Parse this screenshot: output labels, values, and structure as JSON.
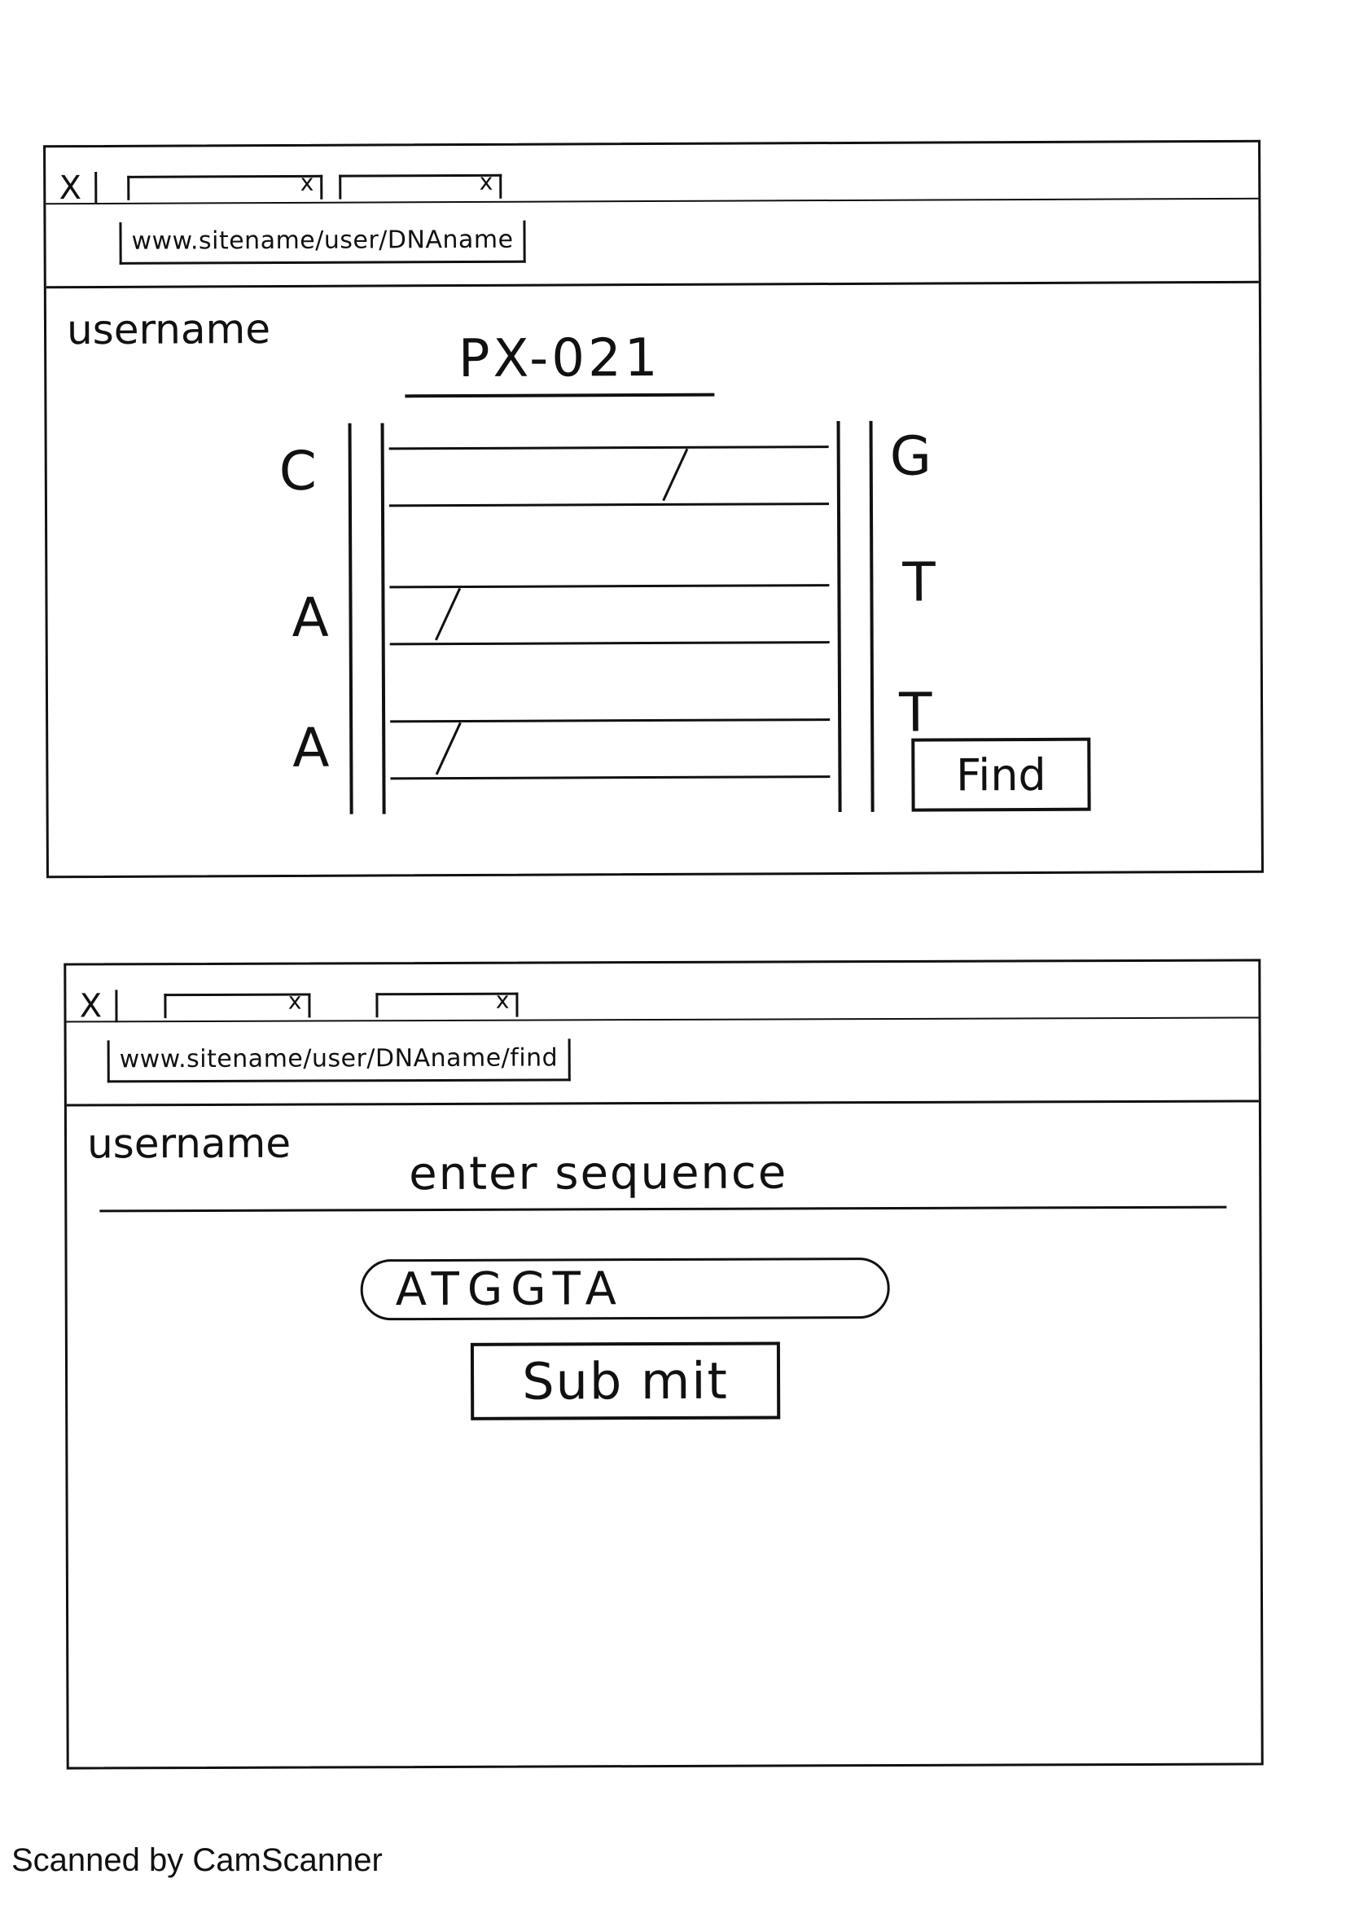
{
  "screen1": {
    "url": "www.sitename/user/DNAname",
    "username": "username",
    "dna_title": "PX-021",
    "left_bases": [
      "C",
      "A",
      "A"
    ],
    "right_bases": [
      "G",
      "T",
      "T"
    ],
    "find_button": "Find",
    "tab_close": "X",
    "tab_x": "x"
  },
  "screen2": {
    "url": "www.sitename/user/DNAname/find",
    "username": "username",
    "prompt": "enter sequence",
    "sequence_value": "ATGGTA",
    "submit_button": "Sub mit",
    "tab_close": "X",
    "tab_x": "x"
  },
  "footer": "Scanned by CamScanner"
}
